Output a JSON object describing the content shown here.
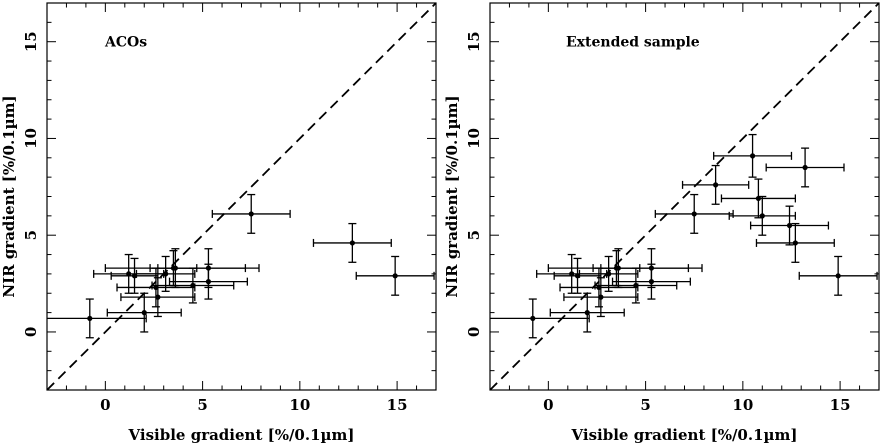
{
  "chart_data": [
    {
      "type": "scatter",
      "title": "",
      "annotation": "ACOs",
      "xlabel": "Visible gradient [%/0.1µm]",
      "ylabel": "NIR gradient [%/0.1µm]",
      "xlim": [
        -3,
        17
      ],
      "ylim": [
        -3,
        17
      ],
      "xticks": [
        0,
        5,
        10,
        15
      ],
      "yticks": [
        0,
        5,
        10,
        15
      ],
      "reference_line": "y = x (dashed)",
      "points": [
        {
          "x": -0.8,
          "y": 0.7,
          "xerr": 2.9,
          "yerr": 1.0
        },
        {
          "x": 2.0,
          "y": 1.0,
          "xerr": 1.9,
          "yerr": 1.0
        },
        {
          "x": 2.6,
          "y": 2.3,
          "xerr": 2.0,
          "yerr": 1.0
        },
        {
          "x": 2.7,
          "y": 1.8,
          "xerr": 1.9,
          "yerr": 1.0
        },
        {
          "x": 1.2,
          "y": 3.0,
          "xerr": 1.8,
          "yerr": 1.0
        },
        {
          "x": 1.5,
          "y": 2.9,
          "xerr": 1.2,
          "yerr": 0.9
        },
        {
          "x": 3.1,
          "y": 3.0,
          "xerr": 1.5,
          "yerr": 0.9
        },
        {
          "x": 3.5,
          "y": 3.3,
          "xerr": 1.2,
          "yerr": 0.9
        },
        {
          "x": 3.6,
          "y": 3.3,
          "xerr": 3.6,
          "yerr": 1.0
        },
        {
          "x": 4.5,
          "y": 2.4,
          "xerr": 2.1,
          "yerr": 0.9
        },
        {
          "x": 5.3,
          "y": 2.6,
          "xerr": 2.0,
          "yerr": 0.9
        },
        {
          "x": 5.3,
          "y": 3.3,
          "xerr": 2.6,
          "yerr": 1.0
        },
        {
          "x": 7.5,
          "y": 6.1,
          "xerr": 2.0,
          "yerr": 1.0
        },
        {
          "x": 12.7,
          "y": 4.6,
          "xerr": 2.0,
          "yerr": 1.0
        },
        {
          "x": 14.9,
          "y": 2.9,
          "xerr": 2.0,
          "yerr": 1.0
        }
      ]
    },
    {
      "type": "scatter",
      "title": "",
      "annotation": "Extended sample",
      "xlabel": "Visible gradient [%/0.1µm]",
      "ylabel": "NIR gradient [%/0.1µm]",
      "xlim": [
        -3,
        17
      ],
      "ylim": [
        -3,
        17
      ],
      "xticks": [
        0,
        5,
        10,
        15
      ],
      "yticks": [
        0,
        5,
        10,
        15
      ],
      "reference_line": "y = x (dashed)",
      "points": [
        {
          "x": -0.8,
          "y": 0.7,
          "xerr": 2.9,
          "yerr": 1.0
        },
        {
          "x": 2.0,
          "y": 1.0,
          "xerr": 1.9,
          "yerr": 1.0
        },
        {
          "x": 2.6,
          "y": 2.3,
          "xerr": 2.0,
          "yerr": 1.0
        },
        {
          "x": 2.7,
          "y": 1.8,
          "xerr": 1.9,
          "yerr": 1.0
        },
        {
          "x": 1.2,
          "y": 3.0,
          "xerr": 1.8,
          "yerr": 1.0
        },
        {
          "x": 1.5,
          "y": 2.9,
          "xerr": 1.2,
          "yerr": 0.9
        },
        {
          "x": 3.1,
          "y": 3.0,
          "xerr": 1.5,
          "yerr": 0.9
        },
        {
          "x": 3.5,
          "y": 3.3,
          "xerr": 1.2,
          "yerr": 0.9
        },
        {
          "x": 3.6,
          "y": 3.3,
          "xerr": 3.6,
          "yerr": 1.0
        },
        {
          "x": 4.5,
          "y": 2.4,
          "xerr": 2.1,
          "yerr": 0.9
        },
        {
          "x": 5.3,
          "y": 2.6,
          "xerr": 2.0,
          "yerr": 0.9
        },
        {
          "x": 5.3,
          "y": 3.3,
          "xerr": 2.6,
          "yerr": 1.0
        },
        {
          "x": 7.5,
          "y": 6.1,
          "xerr": 2.0,
          "yerr": 1.0
        },
        {
          "x": 12.7,
          "y": 4.6,
          "xerr": 2.0,
          "yerr": 1.0
        },
        {
          "x": 14.9,
          "y": 2.9,
          "xerr": 2.0,
          "yerr": 1.0
        },
        {
          "x": 8.6,
          "y": 7.6,
          "xerr": 1.7,
          "yerr": 1.0
        },
        {
          "x": 10.5,
          "y": 9.1,
          "xerr": 2.0,
          "yerr": 1.1
        },
        {
          "x": 13.2,
          "y": 8.5,
          "xerr": 2.0,
          "yerr": 1.0
        },
        {
          "x": 10.8,
          "y": 6.9,
          "xerr": 1.9,
          "yerr": 1.0
        },
        {
          "x": 11.0,
          "y": 6.0,
          "xerr": 1.7,
          "yerr": 1.0
        },
        {
          "x": 12.4,
          "y": 5.5,
          "xerr": 2.0,
          "yerr": 1.0
        }
      ]
    }
  ]
}
